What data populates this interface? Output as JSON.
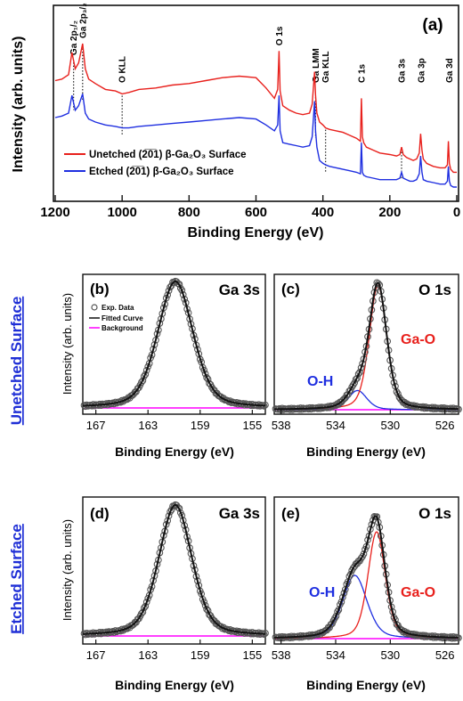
{
  "colors": {
    "red": "#e8201c",
    "blue": "#1f2fe0",
    "black": "#111111",
    "magenta": "#ff00ff",
    "grey_marker": "#555555",
    "side_label": "#1f2fd6"
  },
  "side_labels": {
    "unetched": "Unetched Surface",
    "etched": "Etched Surface"
  },
  "chart_data": [
    {
      "panel": "(a)",
      "type": "line",
      "xlabel": "Binding Energy (eV)",
      "ylabel": "Intensity (arb. units)",
      "xlim": [
        1200,
        0
      ],
      "xticks": [
        "1200",
        "1000",
        "800",
        "600",
        "400",
        "200",
        "0"
      ],
      "legend_position": "bottom-left",
      "series": [
        {
          "name": "Unetched (2̅0̅1) β-Ga₂O₃ Surface",
          "color": "#e8201c",
          "x": [
            1200,
            1180,
            1160,
            1150,
            1140,
            1130,
            1118,
            1110,
            1100,
            1080,
            1050,
            1020,
            1000,
            980,
            950,
            900,
            850,
            800,
            750,
            700,
            650,
            600,
            570,
            545,
            535,
            531,
            528,
            520,
            500,
            480,
            460,
            440,
            432,
            425,
            422,
            418,
            410,
            400,
            392,
            380,
            360,
            340,
            320,
            300,
            288,
            285,
            282,
            278,
            270,
            250,
            230,
            200,
            180,
            170,
            165,
            160,
            150,
            140,
            130,
            120,
            112,
            108,
            104,
            100,
            90,
            70,
            50,
            35,
            28,
            25,
            22,
            18,
            10,
            0
          ],
          "y": [
            0.72,
            0.73,
            0.76,
            0.91,
            0.8,
            0.84,
            0.97,
            0.8,
            0.73,
            0.7,
            0.66,
            0.65,
            0.63,
            0.64,
            0.66,
            0.67,
            0.69,
            0.7,
            0.72,
            0.74,
            0.75,
            0.74,
            0.67,
            0.6,
            0.66,
            0.92,
            0.65,
            0.55,
            0.52,
            0.5,
            0.49,
            0.5,
            0.56,
            0.78,
            0.62,
            0.5,
            0.44,
            0.42,
            0.4,
            0.39,
            0.38,
            0.37,
            0.35,
            0.33,
            0.31,
            0.6,
            0.34,
            0.3,
            0.27,
            0.25,
            0.23,
            0.22,
            0.21,
            0.22,
            0.27,
            0.22,
            0.2,
            0.19,
            0.18,
            0.19,
            0.23,
            0.36,
            0.25,
            0.19,
            0.16,
            0.14,
            0.13,
            0.13,
            0.15,
            0.31,
            0.16,
            0.12,
            0.1,
            0.1
          ]
        },
        {
          "name": "Etched (2̅0̅1) β-Ga₂O₃ Surface",
          "color": "#1f2fe0",
          "x": [
            1200,
            1180,
            1160,
            1150,
            1140,
            1130,
            1118,
            1110,
            1100,
            1080,
            1050,
            1020,
            1000,
            980,
            950,
            900,
            850,
            800,
            750,
            700,
            650,
            600,
            570,
            545,
            535,
            531,
            528,
            520,
            500,
            480,
            460,
            440,
            432,
            425,
            422,
            418,
            410,
            400,
            392,
            380,
            360,
            340,
            320,
            300,
            288,
            285,
            282,
            278,
            270,
            250,
            230,
            200,
            180,
            170,
            165,
            160,
            150,
            140,
            130,
            120,
            112,
            108,
            104,
            100,
            90,
            70,
            50,
            35,
            28,
            25,
            22,
            18,
            10,
            0
          ],
          "y": [
            0.47,
            0.48,
            0.5,
            0.62,
            0.52,
            0.55,
            0.63,
            0.5,
            0.46,
            0.44,
            0.42,
            0.41,
            0.4,
            0.4,
            0.41,
            0.42,
            0.43,
            0.44,
            0.45,
            0.46,
            0.47,
            0.46,
            0.42,
            0.38,
            0.42,
            0.62,
            0.38,
            0.3,
            0.29,
            0.28,
            0.27,
            0.28,
            0.34,
            0.58,
            0.38,
            0.27,
            0.18,
            0.16,
            0.15,
            0.14,
            0.13,
            0.12,
            0.11,
            0.1,
            0.09,
            0.3,
            0.1,
            0.08,
            0.07,
            0.06,
            0.05,
            0.05,
            0.05,
            0.06,
            0.1,
            0.06,
            0.05,
            0.04,
            0.04,
            0.05,
            0.09,
            0.21,
            0.1,
            0.05,
            0.04,
            0.03,
            0.02,
            0.02,
            0.04,
            0.14,
            0.04,
            0.01,
            0.0,
            0.0
          ]
        }
      ],
      "annotations": [
        {
          "text": "Ga 2p₁/₂",
          "x": 1145,
          "dotted": true
        },
        {
          "text": "Ga 2p₃/₂",
          "x": 1118,
          "dotted": true
        },
        {
          "text": "O KLL",
          "x": 1000,
          "dotted": true
        },
        {
          "text": "O 1s",
          "x": 531,
          "dotted": false
        },
        {
          "text": "Ga LMM",
          "x": 422,
          "dotted": true
        },
        {
          "text": "Ga KLL",
          "x": 392,
          "dotted": true
        },
        {
          "text": "C 1s",
          "x": 285,
          "dotted": false
        },
        {
          "text": "Ga 3s",
          "x": 165,
          "dotted": true
        },
        {
          "text": "Ga 3p",
          "x": 106,
          "dotted": false
        },
        {
          "text": "Ga 3d",
          "x": 22,
          "dotted": false
        }
      ]
    },
    {
      "panel": "(b)",
      "type": "scatter",
      "peak_label": "Ga 3s",
      "xlabel": "Binding Energy (eV)",
      "ylabel": "Intensity (arb. units)",
      "xlim": [
        168,
        154
      ],
      "xticks": [
        "167",
        "163",
        "159",
        "155"
      ],
      "legend": [
        "Exp. Data",
        "Fitted Curve",
        "Background"
      ],
      "series": [
        {
          "name": "Exp. Data",
          "peak_center": 160.9,
          "fwhm": 3.2,
          "height": 1.0
        },
        {
          "name": "Fitted Curve",
          "peak_center": 160.9,
          "fwhm": 3.2,
          "height": 1.0
        },
        {
          "name": "Background",
          "level": 0.0
        }
      ]
    },
    {
      "panel": "(c)",
      "type": "scatter",
      "peak_label": "O 1s",
      "xlabel": "Binding Energy (eV)",
      "xlim": [
        538.5,
        525
      ],
      "xticks": [
        "538",
        "534",
        "530",
        "526"
      ],
      "components": [
        {
          "label": "Ga-O",
          "center": 530.9,
          "fwhm": 1.5,
          "height": 0.97,
          "color": "#e8201c"
        },
        {
          "label": "O-H",
          "center": 532.4,
          "fwhm": 1.6,
          "height": 0.15,
          "color": "#1f2fe0"
        }
      ]
    },
    {
      "panel": "(d)",
      "type": "scatter",
      "peak_label": "Ga 3s",
      "xlabel": "Binding Energy (eV)",
      "ylabel": "Intensity (arb. units)",
      "xlim": [
        168,
        154
      ],
      "xticks": [
        "167",
        "163",
        "159",
        "155"
      ],
      "series": [
        {
          "name": "Exp. Data",
          "peak_center": 160.9,
          "fwhm": 3.0,
          "height": 1.0
        },
        {
          "name": "Fitted Curve",
          "peak_center": 160.9,
          "fwhm": 3.0,
          "height": 1.0
        },
        {
          "name": "Background",
          "level": 0.0
        }
      ]
    },
    {
      "panel": "(e)",
      "type": "scatter",
      "peak_label": "O 1s",
      "xlabel": "Binding Energy (eV)",
      "xlim": [
        538.5,
        525
      ],
      "xticks": [
        "538",
        "534",
        "530",
        "526"
      ],
      "components": [
        {
          "label": "Ga-O",
          "center": 531.0,
          "fwhm": 1.5,
          "height": 0.81,
          "color": "#e8201c"
        },
        {
          "label": "O-H",
          "center": 532.6,
          "fwhm": 2.1,
          "height": 0.48,
          "color": "#1f2fe0"
        }
      ]
    }
  ]
}
